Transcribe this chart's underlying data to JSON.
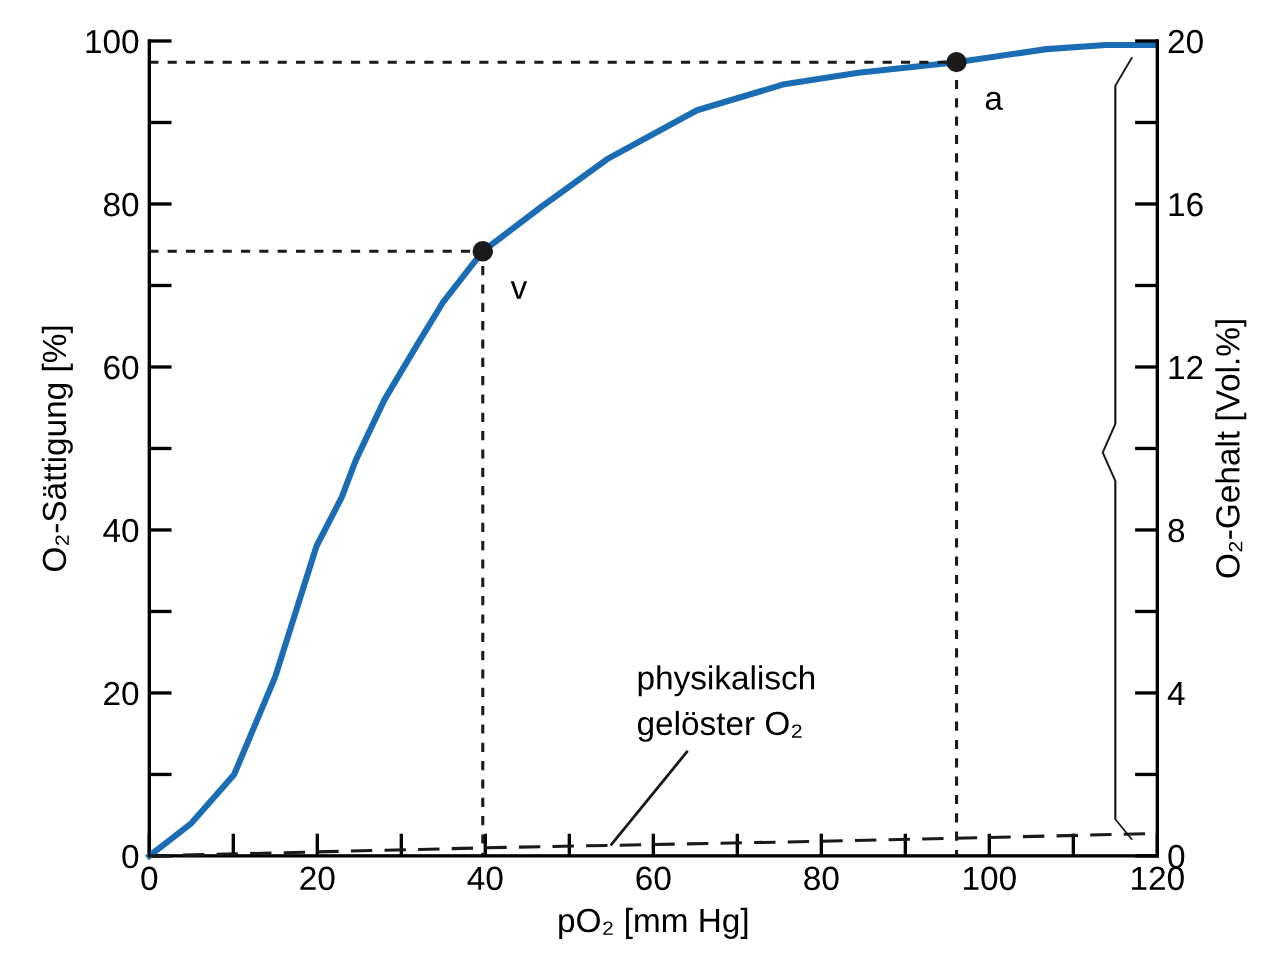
{
  "chart_data": {
    "type": "line",
    "xlabel": "pO₂ [mm Hg]",
    "ylabel": "O₂-Sättigung [%]",
    "y2label": "O₂-Gehalt [Vol.%]",
    "xlim": [
      0,
      120
    ],
    "ylim": [
      0,
      100
    ],
    "y2lim": [
      0,
      20
    ],
    "xticks": [
      0,
      {
        "value": 10,
        "label": null
      },
      20,
      {
        "value": 30,
        "label": null
      },
      40,
      {
        "value": 50,
        "label": null
      },
      60,
      {
        "value": 70,
        "label": null
      },
      80,
      {
        "value": 90,
        "label": null
      },
      100,
      {
        "value": 110,
        "label": null
      },
      120
    ],
    "yticks": [
      0,
      {
        "value": 10,
        "label": null
      },
      20,
      {
        "value": 30,
        "label": null
      },
      40,
      {
        "value": 50,
        "label": null
      },
      60,
      {
        "value": 70,
        "label": null
      },
      80,
      {
        "value": 90,
        "label": null
      },
      100
    ],
    "y2ticks": [
      0,
      {
        "value": 2,
        "label": null
      },
      4,
      {
        "value": 6,
        "label": null
      },
      8,
      {
        "value": 10,
        "label": null
      },
      12,
      {
        "value": 14,
        "label": null
      },
      16,
      {
        "value": 18,
        "label": null
      },
      20
    ],
    "grid": false,
    "series": [
      {
        "color": "#1a6db5",
        "line_style": "solid",
        "x": [
          0,
          5,
          10.1,
          15,
          19.9,
          22.9,
          24.6,
          28,
          31.7,
          35,
          39.7,
          46.6,
          54.5,
          65.2,
          75.6,
          84.4,
          96.1,
          106.8,
          113.9,
          119.6
        ],
        "values": [
          0,
          4,
          10,
          22,
          38,
          44,
          48.6,
          56,
          62.4,
          68,
          74.2,
          79.6,
          85.5,
          91.5,
          94.7,
          96.1,
          97.4,
          99,
          99.5,
          99.5
        ]
      },
      {
        "color": "#1a1a1a",
        "line_style": "dashed",
        "axis": "y2",
        "x": [
          0,
          40,
          80,
          120
        ],
        "values": [
          0,
          0.2,
          0.36,
          0.55
        ]
      },
      {
        "color": "#1a1a1a",
        "line_style": "dotted",
        "x": [
          0,
          39.7,
          39.7
        ],
        "values": [
          74.2,
          74.2,
          0
        ]
      },
      {
        "color": "#1a1a1a",
        "line_style": "dotted",
        "x": [
          0,
          96.1,
          96.1
        ],
        "values": [
          97.4,
          97.4,
          0
        ]
      },
      {
        "type": "scatter",
        "color": "#1a1a1a",
        "marker": "circle",
        "x": [
          39.7,
          96.1
        ],
        "values": [
          74.2,
          97.4
        ]
      }
    ],
    "annotations": [
      {
        "text": "v",
        "x": 39.7,
        "y": 74.2
      },
      {
        "text": "a",
        "x": 96.1,
        "y": 97.4
      },
      {
        "text": "physikalisch\ngelöster O₂",
        "x": 55,
        "y": 1.4
      }
    ]
  }
}
